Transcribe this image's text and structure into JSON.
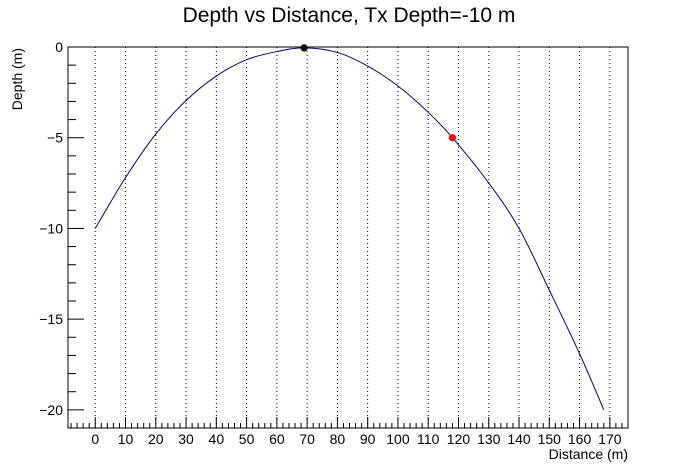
{
  "chart_data": {
    "type": "line",
    "title": "Depth vs Distance, Tx Depth=-10 m",
    "xlabel": "Distance (m)",
    "ylabel": "Depth (m)",
    "xlim": [
      -9,
      176
    ],
    "ylim": [
      -21,
      0
    ],
    "xticks": [
      0,
      10,
      20,
      30,
      40,
      50,
      60,
      70,
      80,
      90,
      100,
      110,
      120,
      130,
      140,
      150,
      160,
      170
    ],
    "yticks": [
      0,
      -5,
      -10,
      -15,
      -20
    ],
    "ytick_labels": [
      "0",
      "−5",
      "−10",
      "−15",
      "−20"
    ],
    "grid": "vertical-dotted",
    "series": [
      {
        "color": "#00008b",
        "x": [
          0,
          10,
          20,
          30,
          40,
          50,
          60,
          69,
          80,
          90,
          100,
          110,
          118,
          130,
          140,
          150,
          160,
          168
        ],
        "y": [
          -10.0,
          -7.2,
          -4.8,
          -2.95,
          -1.6,
          -0.7,
          -0.25,
          -0.05,
          -0.3,
          -1.05,
          -2.15,
          -3.6,
          -5.0,
          -7.5,
          -10.0,
          -13.4,
          -16.9,
          -20.0
        ]
      }
    ],
    "markers": [
      {
        "x": 69,
        "y": -0.05,
        "color": "#000000"
      },
      {
        "x": 118,
        "y": -5.0,
        "color": "#ff0000"
      }
    ]
  }
}
